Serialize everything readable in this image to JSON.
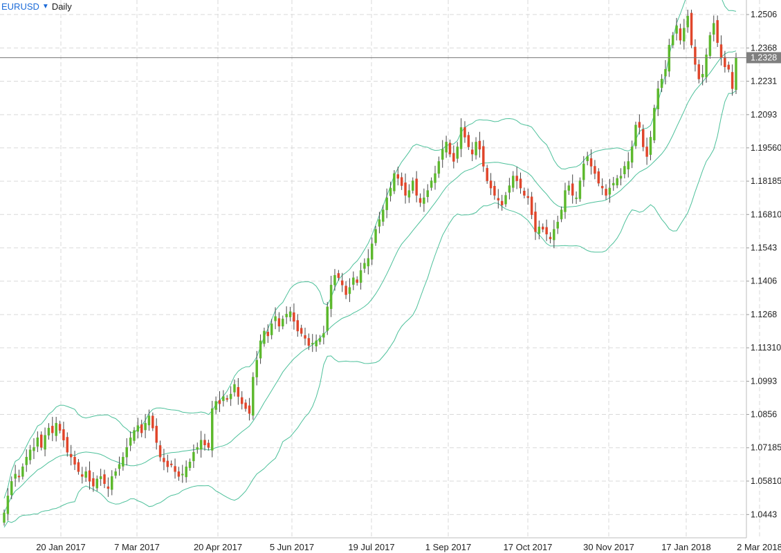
{
  "header": {
    "symbol": "EURUSD",
    "timeframe": "Daily",
    "dropdown_icon": "triangle-down-icon"
  },
  "chart_data": {
    "type": "candlestick",
    "title": "",
    "price_axis_labels": [
      "1.2506",
      "1.2368",
      "1.2231",
      "1.2093",
      "1.19560",
      "1.18185",
      "1.16810",
      "1.1543",
      "1.1406",
      "1.1268",
      "1.11310",
      "1.0993",
      "1.0856",
      "1.07185",
      "1.05810",
      "1.0443"
    ],
    "y_ticks": [
      1.2506,
      1.2368,
      1.2231,
      1.2093,
      1.1956,
      1.18185,
      1.1681,
      1.1543,
      1.1406,
      1.1268,
      1.1131,
      1.0993,
      1.0856,
      1.07185,
      1.0581,
      1.0443
    ],
    "ylim": [
      1.0347,
      1.2566
    ],
    "current_price": {
      "label": "1.2328",
      "value": 1.2328
    },
    "x_labels": [
      "20 Jan 2017",
      "7 Mar 2017",
      "20 Apr 2017",
      "5 Jun 2017",
      "19 Jul 2017",
      "1 Sep 2017",
      "17 Oct 2017",
      "30 Nov 2017",
      "17 Jan 2018",
      "2 Mar 2018"
    ],
    "indicator": "Bollinger Bands",
    "grid": true,
    "colors": {
      "up": "#5cb82c",
      "down": "#e0452a",
      "bands": "#4cc09a",
      "grid": "#d9d9d9"
    },
    "closes": [
      1.045,
      1.052,
      1.058,
      1.061,
      1.06,
      1.064,
      1.068,
      1.071,
      1.072,
      1.076,
      1.072,
      1.077,
      1.08,
      1.078,
      1.082,
      1.079,
      1.075,
      1.07,
      1.068,
      1.065,
      1.062,
      1.06,
      1.062,
      1.058,
      1.056,
      1.059,
      1.06,
      1.057,
      1.055,
      1.06,
      1.062,
      1.065,
      1.068,
      1.072,
      1.076,
      1.079,
      1.081,
      1.078,
      1.082,
      1.085,
      1.08,
      1.074,
      1.068,
      1.066,
      1.064,
      1.065,
      1.062,
      1.06,
      1.061,
      1.064,
      1.066,
      1.07,
      1.072,
      1.075,
      1.073,
      1.072,
      1.088,
      1.091,
      1.09,
      1.093,
      1.092,
      1.094,
      1.098,
      1.093,
      1.09,
      1.088,
      1.086,
      1.101,
      1.108,
      1.116,
      1.12,
      1.118,
      1.123,
      1.126,
      1.122,
      1.125,
      1.127,
      1.128,
      1.124,
      1.12,
      1.119,
      1.117,
      1.114,
      1.115,
      1.116,
      1.117,
      1.119,
      1.13,
      1.139,
      1.143,
      1.142,
      1.139,
      1.135,
      1.138,
      1.142,
      1.14,
      1.145,
      1.148,
      1.15,
      1.156,
      1.162,
      1.166,
      1.17,
      1.175,
      1.179,
      1.185,
      1.183,
      1.18,
      1.176,
      1.178,
      1.182,
      1.176,
      1.173,
      1.175,
      1.178,
      1.182,
      1.185,
      1.19,
      1.195,
      1.198,
      1.193,
      1.19,
      1.196,
      1.204,
      1.2,
      1.196,
      1.193,
      1.198,
      1.195,
      1.188,
      1.182,
      1.179,
      1.176,
      1.174,
      1.172,
      1.176,
      1.18,
      1.184,
      1.182,
      1.179,
      1.176,
      1.175,
      1.168,
      1.161,
      1.163,
      1.162,
      1.16,
      1.158,
      1.162,
      1.165,
      1.17,
      1.178,
      1.18,
      1.176,
      1.175,
      1.182,
      1.189,
      1.192,
      1.188,
      1.185,
      1.181,
      1.179,
      1.176,
      1.179,
      1.181,
      1.183,
      1.184,
      1.188,
      1.19,
      1.196,
      1.205,
      1.204,
      1.196,
      1.192,
      1.2,
      1.212,
      1.22,
      1.224,
      1.228,
      1.238,
      1.242,
      1.246,
      1.24,
      1.245,
      1.25,
      1.238,
      1.23,
      1.224,
      1.226,
      1.234,
      1.242,
      1.247,
      1.239,
      1.233,
      1.229,
      1.228,
      1.22,
      1.2328
    ]
  }
}
